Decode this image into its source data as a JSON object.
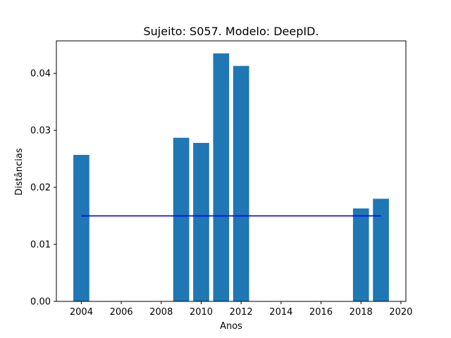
{
  "chart_data": {
    "type": "bar",
    "title": "Sujeito: S057. Modelo: DeepID.",
    "xlabel": "Anos",
    "ylabel": "Distâncias",
    "xlim": [
      2002.75,
      2020.25
    ],
    "ylim": [
      0,
      0.0457
    ],
    "xticks": [
      2004,
      2006,
      2008,
      2010,
      2012,
      2014,
      2016,
      2018,
      2020
    ],
    "yticks": [
      0.0,
      0.01,
      0.02,
      0.03,
      0.04
    ],
    "ytick_labels": [
      "0.00",
      "0.01",
      "0.02",
      "0.03",
      "0.04"
    ],
    "grid": false,
    "bar_width": 0.8,
    "bar_color": "#1f77b4",
    "bars": [
      {
        "x": 2004,
        "y": 0.0257
      },
      {
        "x": 2009,
        "y": 0.0287
      },
      {
        "x": 2010,
        "y": 0.0278
      },
      {
        "x": 2011,
        "y": 0.0435
      },
      {
        "x": 2012,
        "y": 0.0413
      },
      {
        "x": 2018,
        "y": 0.0163
      },
      {
        "x": 2019,
        "y": 0.018
      }
    ],
    "reference_line": {
      "x_start": 2004,
      "x_end": 2019,
      "y": 0.015,
      "color": "#0000ff"
    }
  }
}
